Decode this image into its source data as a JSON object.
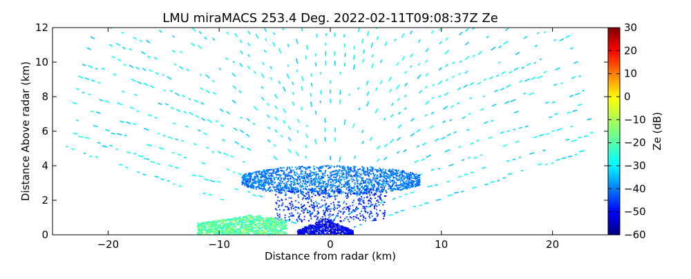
{
  "chart_data": {
    "type": "heatmap",
    "title": "LMU miraMACS 253.4 Deg. 2022-02-11T09:08:37Z  Ze",
    "xlabel": "Distance from radar (km)",
    "ylabel": "Distance Above radar  (km)",
    "xlim": [
      -25,
      25
    ],
    "ylim": [
      0,
      12
    ],
    "x_ticks": [
      -20,
      -10,
      0,
      10,
      20
    ],
    "y_ticks": [
      0,
      2,
      4,
      6,
      8,
      10,
      12
    ],
    "colorbar": {
      "label": "Ze (dB)",
      "range": [
        -60,
        30
      ],
      "ticks": [
        -60,
        -50,
        -40,
        -30,
        -20,
        -10,
        0,
        10,
        20,
        30
      ],
      "colormap": "jet"
    },
    "grid": false,
    "regions": [
      {
        "x": [
          -24,
          24
        ],
        "y": [
          0.3,
          12
        ],
        "ze": -28
      },
      {
        "x": [
          -8,
          8
        ],
        "y": [
          2.5,
          4.2
        ],
        "ze": -38
      },
      {
        "x": [
          -12,
          -4
        ],
        "y": [
          0,
          1.2
        ],
        "ze": -18
      },
      {
        "x": [
          -3,
          2
        ],
        "y": [
          0,
          1
        ],
        "ze": -50
      }
    ]
  }
}
